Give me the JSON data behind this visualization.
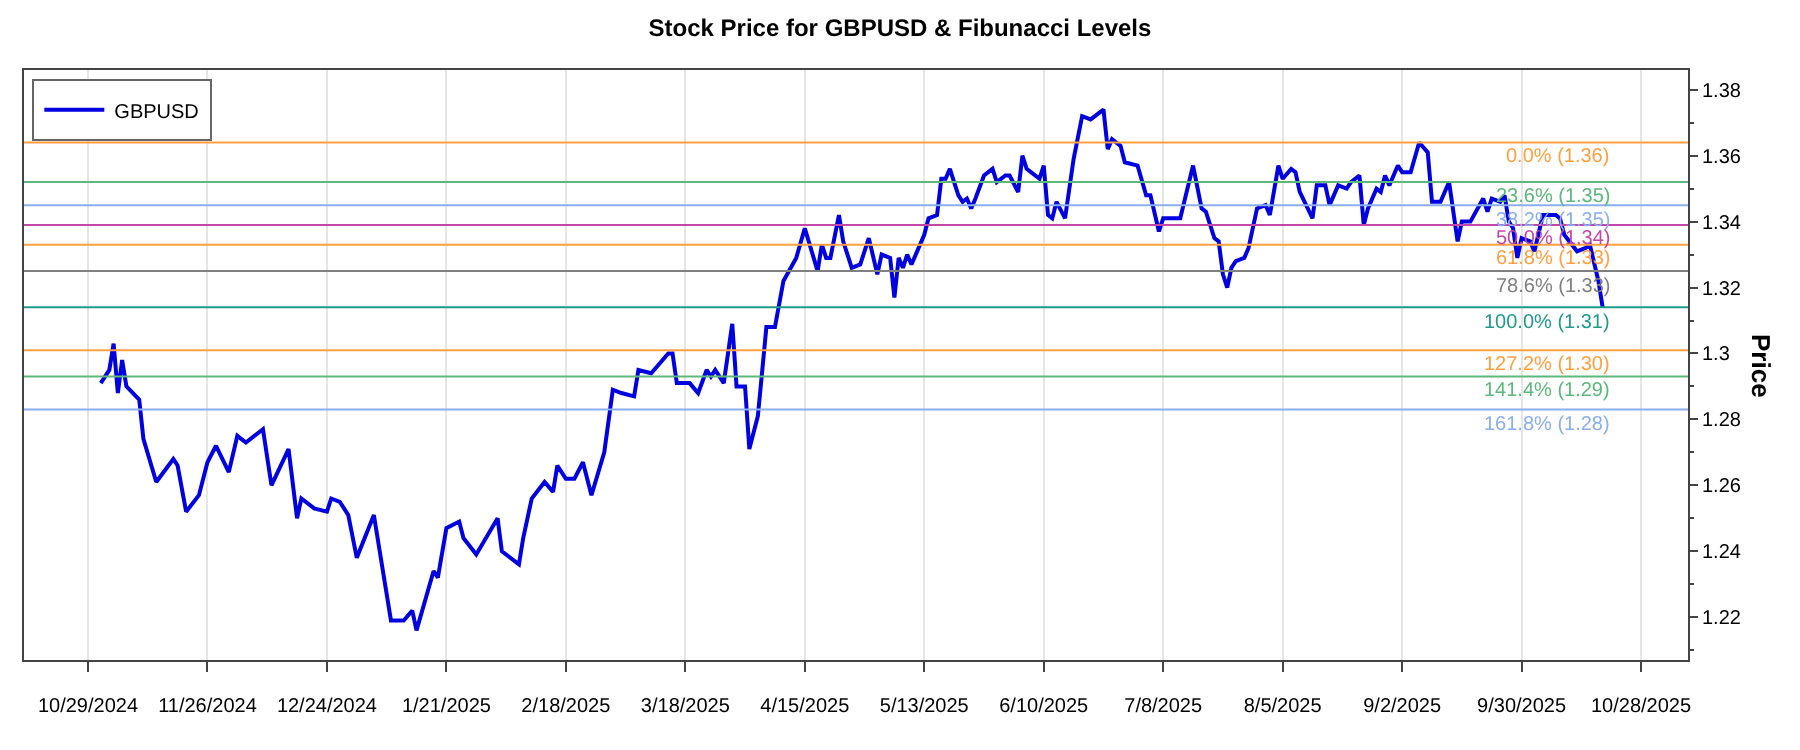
{
  "chart_data": {
    "type": "line",
    "title": "Stock Price for GBPUSD & Fibunacci Levels",
    "ylabel": "Price",
    "x": [
      "2024-11-01",
      "2024-11-03",
      "2024-11-04",
      "2024-11-05",
      "2024-11-06",
      "2024-11-07",
      "2024-11-10",
      "2024-11-11",
      "2024-11-14",
      "2024-11-18",
      "2024-11-19",
      "2024-11-21",
      "2024-11-24",
      "2024-11-26",
      "2024-11-28",
      "2024-12-01",
      "2024-12-03",
      "2024-12-05",
      "2024-12-09",
      "2024-12-11",
      "2024-12-15",
      "2024-12-17",
      "2024-12-18",
      "2024-12-21",
      "2024-12-24",
      "2024-12-25",
      "2024-12-27",
      "2024-12-29",
      "2024-12-31",
      "2025-01-04",
      "2025-01-06",
      "2025-01-08",
      "2025-01-11",
      "2025-01-13",
      "2025-01-14",
      "2025-01-18",
      "2025-01-19",
      "2025-01-21",
      "2025-01-24",
      "2025-01-25",
      "2025-01-28",
      "2025-02-02",
      "2025-02-03",
      "2025-02-07",
      "2025-02-08",
      "2025-02-10",
      "2025-02-13",
      "2025-02-15",
      "2025-02-16",
      "2025-02-18",
      "2025-02-20",
      "2025-02-22",
      "2025-02-24",
      "2025-02-27",
      "2025-03-01",
      "2025-03-03",
      "2025-03-06",
      "2025-03-07",
      "2025-03-10",
      "2025-03-14",
      "2025-03-15",
      "2025-03-16",
      "2025-03-19",
      "2025-03-21",
      "2025-03-23",
      "2025-03-24",
      "2025-03-25",
      "2025-03-27",
      "2025-03-29",
      "2025-03-30",
      "2025-04-01",
      "2025-04-02",
      "2025-04-04",
      "2025-04-06",
      "2025-04-08",
      "2025-04-10",
      "2025-04-13",
      "2025-04-15",
      "2025-04-18",
      "2025-04-19",
      "2025-04-20",
      "2025-04-21",
      "2025-04-23",
      "2025-04-24",
      "2025-04-26",
      "2025-04-28",
      "2025-04-30",
      "2025-05-02",
      "2025-05-03",
      "2025-05-05",
      "2025-05-06",
      "2025-05-07",
      "2025-05-08",
      "2025-05-09",
      "2025-05-10",
      "2025-05-11",
      "2025-05-13",
      "2025-05-14",
      "2025-05-16",
      "2025-05-17",
      "2025-05-18",
      "2025-05-19",
      "2025-05-21",
      "2025-05-22",
      "2025-05-23",
      "2025-05-24",
      "2025-05-25",
      "2025-05-27",
      "2025-05-28",
      "2025-05-29",
      "2025-05-30",
      "2025-06-01",
      "2025-06-02",
      "2025-06-04",
      "2025-06-05",
      "2025-06-06",
      "2025-06-07",
      "2025-06-09",
      "2025-06-10",
      "2025-06-11",
      "2025-06-12",
      "2025-06-13",
      "2025-06-15",
      "2025-06-17",
      "2025-06-19",
      "2025-06-21",
      "2025-06-24",
      "2025-06-25",
      "2025-06-26",
      "2025-06-28",
      "2025-06-29",
      "2025-07-02",
      "2025-07-04",
      "2025-07-05",
      "2025-07-07",
      "2025-07-08",
      "2025-07-10",
      "2025-07-12",
      "2025-07-15",
      "2025-07-17",
      "2025-07-18",
      "2025-07-20",
      "2025-07-21",
      "2025-07-22",
      "2025-07-23",
      "2025-07-24",
      "2025-07-25",
      "2025-07-27",
      "2025-07-28",
      "2025-07-30",
      "2025-08-01",
      "2025-08-02",
      "2025-08-04",
      "2025-08-05",
      "2025-08-07",
      "2025-08-08",
      "2025-08-09",
      "2025-08-12",
      "2025-08-13",
      "2025-08-15",
      "2025-08-16",
      "2025-08-18",
      "2025-08-20",
      "2025-08-21",
      "2025-08-23",
      "2025-08-24",
      "2025-08-25",
      "2025-08-27",
      "2025-08-28",
      "2025-08-29",
      "2025-08-30",
      "2025-09-01",
      "2025-09-02",
      "2025-09-04",
      "2025-09-06",
      "2025-09-08",
      "2025-09-09",
      "2025-09-11",
      "2025-09-13",
      "2025-09-15",
      "2025-09-16",
      "2025-09-18",
      "2025-09-21",
      "2025-09-22",
      "2025-09-23",
      "2025-09-25",
      "2025-09-26",
      "2025-09-27",
      "2025-09-28",
      "2025-09-29",
      "2025-09-30",
      "2025-10-02",
      "2025-10-03",
      "2025-10-05",
      "2025-10-08",
      "2025-10-09",
      "2025-10-10",
      "2025-10-13",
      "2025-10-15",
      "2025-10-16",
      "2025-10-18",
      "2025-10-19"
    ],
    "series": [
      {
        "name": "GBPUSD",
        "color": "#0000e0",
        "values": [
          1.291,
          1.295,
          1.303,
          1.288,
          1.298,
          1.29,
          1.286,
          1.274,
          1.261,
          1.268,
          1.266,
          1.252,
          1.257,
          1.267,
          1.272,
          1.264,
          1.275,
          1.273,
          1.277,
          1.26,
          1.271,
          1.25,
          1.256,
          1.253,
          1.252,
          1.256,
          1.255,
          1.251,
          1.238,
          1.251,
          1.235,
          1.219,
          1.219,
          1.222,
          1.216,
          1.234,
          1.232,
          1.247,
          1.249,
          1.244,
          1.239,
          1.25,
          1.24,
          1.236,
          1.244,
          1.256,
          1.261,
          1.258,
          1.266,
          1.262,
          1.262,
          1.267,
          1.257,
          1.27,
          1.289,
          1.288,
          1.287,
          1.295,
          1.294,
          1.3,
          1.3,
          1.291,
          1.291,
          1.288,
          1.295,
          1.293,
          1.295,
          1.291,
          1.309,
          1.29,
          1.29,
          1.271,
          1.281,
          1.308,
          1.308,
          1.322,
          1.329,
          1.338,
          1.325,
          1.333,
          1.329,
          1.329,
          1.342,
          1.334,
          1.326,
          1.327,
          1.335,
          1.324,
          1.33,
          1.329,
          1.317,
          1.329,
          1.326,
          1.33,
          1.327,
          1.33,
          1.336,
          1.341,
          1.342,
          1.353,
          1.353,
          1.356,
          1.348,
          1.346,
          1.347,
          1.344,
          1.347,
          1.354,
          1.355,
          1.356,
          1.352,
          1.354,
          1.354,
          1.349,
          1.36,
          1.356,
          1.355,
          1.353,
          1.357,
          1.342,
          1.341,
          1.346,
          1.341,
          1.359,
          1.372,
          1.371,
          1.374,
          1.362,
          1.365,
          1.363,
          1.358,
          1.357,
          1.348,
          1.348,
          1.337,
          1.341,
          1.341,
          1.341,
          1.357,
          1.344,
          1.343,
          1.335,
          1.334,
          1.324,
          1.32,
          1.326,
          1.328,
          1.329,
          1.332,
          1.344,
          1.345,
          1.342,
          1.357,
          1.353,
          1.356,
          1.355,
          1.349,
          1.341,
          1.351,
          1.351,
          1.345,
          1.351,
          1.35,
          1.352,
          1.354,
          1.339,
          1.344,
          1.35,
          1.349,
          1.354,
          1.351,
          1.357,
          1.355,
          1.355,
          1.364,
          1.361,
          1.346,
          1.346,
          1.352,
          1.334,
          1.34,
          1.34,
          1.347,
          1.343,
          1.347,
          1.346,
          1.348,
          1.34,
          1.338,
          1.329,
          1.335,
          1.334,
          1.331,
          1.342,
          1.342,
          1.341,
          1.336,
          1.331,
          1.332,
          1.333,
          1.322,
          1.314
        ]
      }
    ],
    "xlim": [
      "2024-10-14",
      "2025-11-08"
    ],
    "xticks": [
      {
        "value": "2024-10-29",
        "label": "10/29/2024"
      },
      {
        "value": "2024-11-26",
        "label": "11/26/2024"
      },
      {
        "value": "2024-12-24",
        "label": "12/24/2024"
      },
      {
        "value": "2025-01-21",
        "label": "1/21/2025"
      },
      {
        "value": "2025-02-18",
        "label": "2/18/2025"
      },
      {
        "value": "2025-03-18",
        "label": "3/18/2025"
      },
      {
        "value": "2025-04-15",
        "label": "4/15/2025"
      },
      {
        "value": "2025-05-13",
        "label": "5/13/2025"
      },
      {
        "value": "2025-06-10",
        "label": "6/10/2025"
      },
      {
        "value": "2025-07-08",
        "label": "7/8/2025"
      },
      {
        "value": "2025-08-05",
        "label": "8/5/2025"
      },
      {
        "value": "2025-09-02",
        "label": "9/2/2025"
      },
      {
        "value": "2025-09-30",
        "label": "9/30/2025"
      },
      {
        "value": "2025-10-28",
        "label": "10/28/2025"
      }
    ],
    "ylim": [
      1.207,
      1.386
    ],
    "yticks": [
      1.22,
      1.24,
      1.26,
      1.28,
      1.3,
      1.32,
      1.34,
      1.36,
      1.38
    ],
    "ref_lines": [
      {
        "axis": "y",
        "value": 1.364,
        "label": "0.0% (1.36)",
        "color": "#ffa040"
      },
      {
        "axis": "y",
        "value": 1.352,
        "label": "23.6% (1.35)",
        "color": "#5cb87a"
      },
      {
        "axis": "y",
        "value": 1.345,
        "label": "38.2% (1.35)",
        "color": "#8aaef0"
      },
      {
        "axis": "y",
        "value": 1.339,
        "label": "50.0% (1.34)",
        "color": "#c048a8"
      },
      {
        "axis": "y",
        "value": 1.333,
        "label": "61.8% (1.33)",
        "color": "#ffa040"
      },
      {
        "axis": "y",
        "value": 1.325,
        "label": "78.6% (1.33)",
        "color": "#808080"
      },
      {
        "axis": "y",
        "value": 1.314,
        "label": "100.0% (1.31)",
        "color": "#209a8a"
      },
      {
        "axis": "y",
        "value": 1.301,
        "label": "127.2% (1.30)",
        "color": "#ffa040"
      },
      {
        "axis": "y",
        "value": 1.293,
        "label": "141.4% (1.29)",
        "color": "#5cb87a"
      },
      {
        "axis": "y",
        "value": 1.283,
        "label": "161.8% (1.28)",
        "color": "#8aaef0"
      }
    ],
    "grid": "x",
    "legend": "top left",
    "marker": "none",
    "line_style": "solid"
  }
}
